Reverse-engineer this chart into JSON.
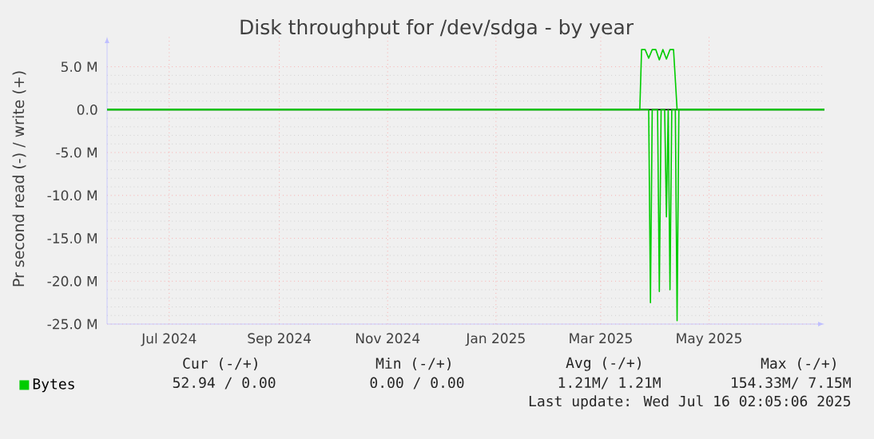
{
  "chart_data": {
    "type": "line",
    "title": "Disk throughput for /dev/sdga - by year",
    "ylabel": "Pr second read (-) / write (+)",
    "xlim": [
      "2024-05-27",
      "2025-07-05"
    ],
    "ylim": [
      -25,
      8.5
    ],
    "xticks": [
      {
        "value": "2024-07-01",
        "label": "Jul 2024"
      },
      {
        "value": "2024-09-01",
        "label": "Sep 2024"
      },
      {
        "value": "2024-11-01",
        "label": "Nov 2024"
      },
      {
        "value": "2025-01-01",
        "label": "Jan 2025"
      },
      {
        "value": "2025-03-01",
        "label": "Mar 2025"
      },
      {
        "value": "2025-05-01",
        "label": "May 2025"
      }
    ],
    "yticks": [
      {
        "value": 5,
        "label": "5.0 M"
      },
      {
        "value": 0,
        "label": "0.0"
      },
      {
        "value": -5,
        "label": "-5.0 M"
      },
      {
        "value": -10,
        "label": "-10.0 M"
      },
      {
        "value": -15,
        "label": "-15.0 M"
      },
      {
        "value": -20,
        "label": "-20.0 M"
      },
      {
        "value": -25,
        "label": "-25.0 M"
      }
    ],
    "grid": true,
    "legend": "bottom left",
    "series": [
      {
        "name": "Bytes",
        "color": "#00cc00",
        "x": [
          "2024-05-27",
          "2025-03-23",
          "2025-03-24",
          "2025-03-26",
          "2025-03-28",
          "2025-03-30",
          "2025-04-01",
          "2025-04-03",
          "2025-04-05",
          "2025-04-07",
          "2025-04-09",
          "2025-04-11",
          "2025-04-13",
          "2025-07-05"
        ],
        "values": [
          0,
          0,
          7.0,
          7.0,
          6.0,
          7.0,
          7.0,
          5.8,
          7.0,
          5.9,
          7.0,
          7.0,
          0,
          0
        ]
      },
      {
        "color": "#00cc00",
        "x": [
          "2024-05-27",
          "2025-03-28",
          "2025-03-29",
          "2025-03-30",
          "2025-04-02",
          "2025-04-03",
          "2025-04-04",
          "2025-04-06",
          "2025-04-07",
          "2025-04-08",
          "2025-04-09",
          "2025-04-10",
          "2025-04-12",
          "2025-04-13",
          "2025-04-14",
          "2025-07-05"
        ],
        "values": [
          0,
          0,
          -22.5,
          0,
          0,
          -21.2,
          0,
          0,
          -12.5,
          0,
          -21.0,
          0,
          0,
          -24.6,
          0,
          0
        ]
      }
    ],
    "ref_lines": [
      {
        "axis": "y",
        "value": 0,
        "color": "#000000"
      }
    ],
    "annotations": [
      "Cur (-/+)",
      "Min (-/+)",
      "Avg (-/+)",
      "Max (-/+)",
      "52.94 / 0.00",
      "0.00 / 0.00",
      "1.21M/ 1.21M",
      "154.33M/ 7.15M",
      "Last update: Wed Jul 16 02:05:06 2025"
    ]
  }
}
